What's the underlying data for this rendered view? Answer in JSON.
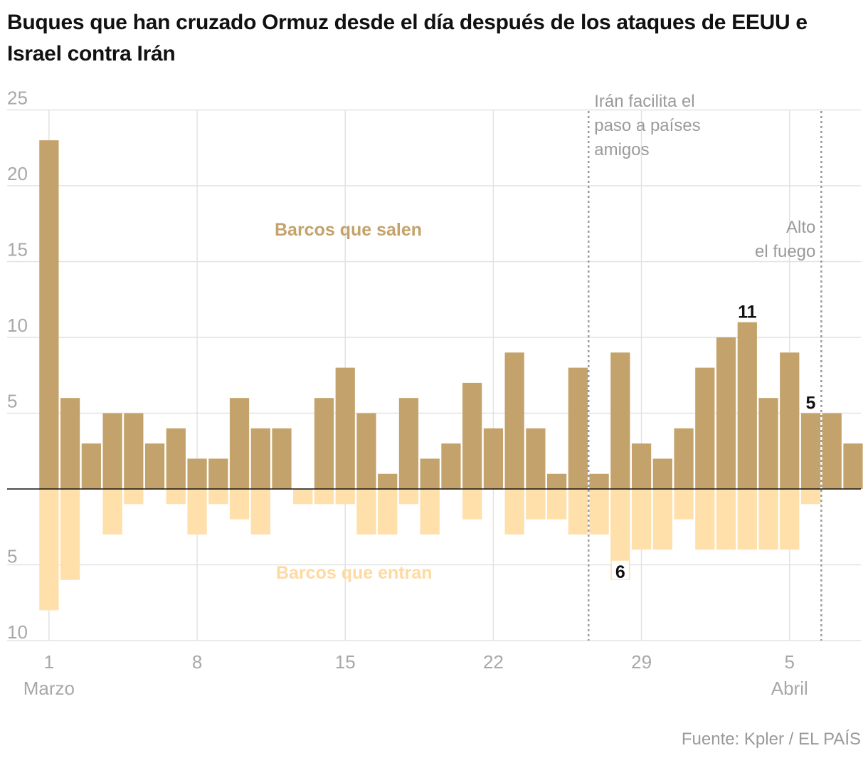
{
  "chart_data": {
    "type": "bar",
    "title": "Buques que han cruzado Ormuz desde el día después de los ataques de EEUU e Israel contra Irán",
    "series": [
      {
        "name": "Barcos que salen",
        "values": [
          23,
          6,
          3,
          5,
          5,
          3,
          4,
          2,
          2,
          6,
          4,
          4,
          0,
          6,
          8,
          5,
          1,
          6,
          2,
          3,
          7,
          4,
          9,
          4,
          1,
          8,
          1,
          9,
          3,
          2,
          4,
          8,
          10,
          11,
          6,
          9,
          5,
          5,
          3
        ]
      },
      {
        "name": "Barcos que entran",
        "values": [
          8,
          6,
          0,
          3,
          1,
          0,
          1,
          3,
          1,
          2,
          3,
          0,
          1,
          1,
          1,
          3,
          3,
          1,
          3,
          0,
          2,
          0,
          3,
          2,
          2,
          3,
          3,
          6,
          4,
          4,
          2,
          4,
          4,
          4,
          4,
          4,
          1,
          0,
          0
        ]
      }
    ],
    "yticks_up": [
      "25",
      "20",
      "15",
      "10",
      "5"
    ],
    "yticks_down": [
      "5",
      "10"
    ],
    "ylim": [
      -10,
      25
    ],
    "xticks": [
      {
        "index": 0,
        "label": "1",
        "sublabel": "Marzo"
      },
      {
        "index": 7,
        "label": "8",
        "sublabel": ""
      },
      {
        "index": 14,
        "label": "15",
        "sublabel": ""
      },
      {
        "index": 21,
        "label": "22",
        "sublabel": ""
      },
      {
        "index": 28,
        "label": "29",
        "sublabel": ""
      },
      {
        "index": 35,
        "label": "5",
        "sublabel": "Abril"
      }
    ],
    "annotations": [
      {
        "after_index": 25,
        "lines": [
          "Irán facilita el",
          "paso a países",
          "amigos"
        ]
      },
      {
        "after_index": 36,
        "lines": [
          "Alto",
          "el fuego"
        ]
      }
    ],
    "value_labels": [
      {
        "series": 0,
        "index": 33,
        "text": "11"
      },
      {
        "series": 0,
        "index": 36,
        "text": "5"
      },
      {
        "series": 1,
        "index": 27,
        "text": "6"
      }
    ],
    "label_out": "Barcos que salen",
    "label_in": "Barcos que entran",
    "colors": {
      "out": "#c4a26b",
      "in": "#ffdfaa",
      "grid": "#e2e2e2",
      "ann": "#9a9a9a"
    }
  },
  "source": "Fuente: Kpler / EL PAÍS"
}
